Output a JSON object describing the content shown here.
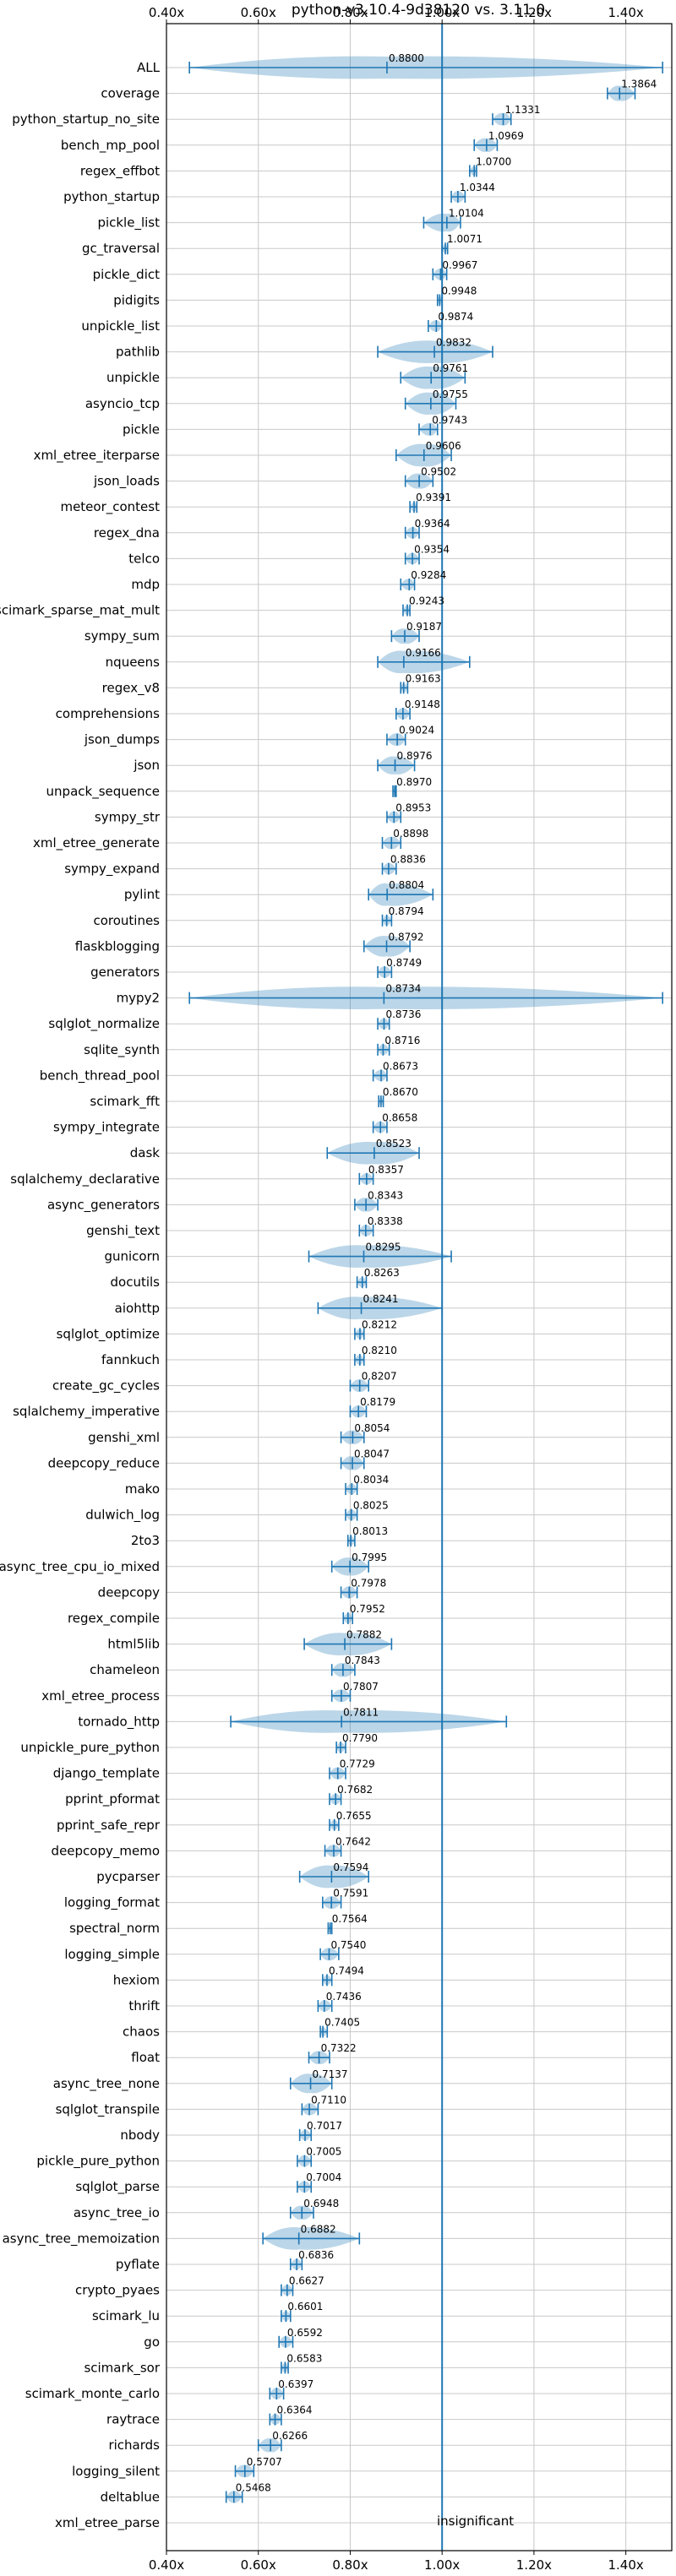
{
  "chart_data": {
    "type": "violin",
    "orientation": "horizontal",
    "title": "python-v3.10.4-9d38120 vs. 3.11.0",
    "xlim": [
      0.4,
      1.5
    ],
    "xticks": [
      0.4,
      0.6,
      0.8,
      1.0,
      1.2,
      1.4
    ],
    "xtick_labels": [
      "0.40x",
      "0.60x",
      "0.80x",
      "1.00x",
      "1.20x",
      "1.40x"
    ],
    "reference_line": 1.0,
    "grid": true,
    "colors": {
      "violin": "#1f77b4",
      "grid": "#c8c8c8"
    },
    "annotation": "insignificant",
    "benchmarks": [
      {
        "name": "ALL",
        "value": 0.88,
        "label": "0.8800",
        "min": 0.45,
        "max": 1.48
      },
      {
        "name": "coverage",
        "value": 1.3864,
        "label": "1.3864",
        "min": 1.36,
        "max": 1.42
      },
      {
        "name": "python_startup_no_site",
        "value": 1.1331,
        "label": "1.1331",
        "min": 1.11,
        "max": 1.15
      },
      {
        "name": "bench_mp_pool",
        "value": 1.0969,
        "label": "1.0969",
        "min": 1.07,
        "max": 1.12
      },
      {
        "name": "regex_effbot",
        "value": 1.07,
        "label": "1.0700",
        "min": 1.06,
        "max": 1.075
      },
      {
        "name": "python_startup",
        "value": 1.0344,
        "label": "1.0344",
        "min": 1.02,
        "max": 1.05
      },
      {
        "name": "pickle_list",
        "value": 1.0104,
        "label": "1.0104",
        "min": 0.96,
        "max": 1.04
      },
      {
        "name": "gc_traversal",
        "value": 1.0071,
        "label": "1.0071",
        "min": 1.0,
        "max": 1.012
      },
      {
        "name": "pickle_dict",
        "value": 0.9967,
        "label": "0.9967",
        "min": 0.98,
        "max": 1.01
      },
      {
        "name": "pidigits",
        "value": 0.9948,
        "label": "0.9948",
        "min": 0.99,
        "max": 1.0
      },
      {
        "name": "unpickle_list",
        "value": 0.9874,
        "label": "0.9874",
        "min": 0.97,
        "max": 1.0
      },
      {
        "name": "pathlib",
        "value": 0.9832,
        "label": "0.9832",
        "min": 0.86,
        "max": 1.11
      },
      {
        "name": "unpickle",
        "value": 0.9761,
        "label": "0.9761",
        "min": 0.91,
        "max": 1.05
      },
      {
        "name": "asyncio_tcp",
        "value": 0.9755,
        "label": "0.9755",
        "min": 0.92,
        "max": 1.03
      },
      {
        "name": "pickle",
        "value": 0.9743,
        "label": "0.9743",
        "min": 0.95,
        "max": 0.99
      },
      {
        "name": "xml_etree_iterparse",
        "value": 0.9606,
        "label": "0.9606",
        "min": 0.9,
        "max": 1.02
      },
      {
        "name": "json_loads",
        "value": 0.9502,
        "label": "0.9502",
        "min": 0.92,
        "max": 0.98
      },
      {
        "name": "meteor_contest",
        "value": 0.9391,
        "label": "0.9391",
        "min": 0.93,
        "max": 0.945
      },
      {
        "name": "regex_dna",
        "value": 0.9364,
        "label": "0.9364",
        "min": 0.92,
        "max": 0.95
      },
      {
        "name": "telco",
        "value": 0.9354,
        "label": "0.9354",
        "min": 0.92,
        "max": 0.95
      },
      {
        "name": "mdp",
        "value": 0.9284,
        "label": "0.9284",
        "min": 0.91,
        "max": 0.94
      },
      {
        "name": "scimark_sparse_mat_mult",
        "value": 0.9243,
        "label": "0.9243",
        "min": 0.915,
        "max": 0.93
      },
      {
        "name": "sympy_sum",
        "value": 0.9187,
        "label": "0.9187",
        "min": 0.89,
        "max": 0.95
      },
      {
        "name": "nqueens",
        "value": 0.9166,
        "label": "0.9166",
        "min": 0.86,
        "max": 1.06
      },
      {
        "name": "regex_v8",
        "value": 0.9163,
        "label": "0.9163",
        "min": 0.91,
        "max": 0.925
      },
      {
        "name": "comprehensions",
        "value": 0.9148,
        "label": "0.9148",
        "min": 0.9,
        "max": 0.93
      },
      {
        "name": "json_dumps",
        "value": 0.9024,
        "label": "0.9024",
        "min": 0.88,
        "max": 0.92
      },
      {
        "name": "json",
        "value": 0.8976,
        "label": "0.8976",
        "min": 0.86,
        "max": 0.94
      },
      {
        "name": "unpack_sequence",
        "value": 0.897,
        "label": "0.8970",
        "min": 0.893,
        "max": 0.9
      },
      {
        "name": "sympy_str",
        "value": 0.8953,
        "label": "0.8953",
        "min": 0.88,
        "max": 0.91
      },
      {
        "name": "xml_etree_generate",
        "value": 0.8898,
        "label": "0.8898",
        "min": 0.87,
        "max": 0.91
      },
      {
        "name": "sympy_expand",
        "value": 0.8836,
        "label": "0.8836",
        "min": 0.87,
        "max": 0.9
      },
      {
        "name": "pylint",
        "value": 0.8804,
        "label": "0.8804",
        "min": 0.84,
        "max": 0.98
      },
      {
        "name": "coroutines",
        "value": 0.8794,
        "label": "0.8794",
        "min": 0.87,
        "max": 0.89
      },
      {
        "name": "flaskblogging",
        "value": 0.8792,
        "label": "0.8792",
        "min": 0.83,
        "max": 0.93
      },
      {
        "name": "generators",
        "value": 0.8749,
        "label": "0.8749",
        "min": 0.86,
        "max": 0.89
      },
      {
        "name": "mypy2",
        "value": 0.8734,
        "label": "0.8734",
        "min": 0.45,
        "max": 1.48
      },
      {
        "name": "sqlglot_normalize",
        "value": 0.8736,
        "label": "0.8736",
        "min": 0.86,
        "max": 0.885
      },
      {
        "name": "sqlite_synth",
        "value": 0.8716,
        "label": "0.8716",
        "min": 0.86,
        "max": 0.885
      },
      {
        "name": "bench_thread_pool",
        "value": 0.8673,
        "label": "0.8673",
        "min": 0.85,
        "max": 0.88
      },
      {
        "name": "scimark_fft",
        "value": 0.867,
        "label": "0.8670",
        "min": 0.862,
        "max": 0.872
      },
      {
        "name": "sympy_integrate",
        "value": 0.8658,
        "label": "0.8658",
        "min": 0.85,
        "max": 0.88
      },
      {
        "name": "dask",
        "value": 0.8523,
        "label": "0.8523",
        "min": 0.75,
        "max": 0.95
      },
      {
        "name": "sqlalchemy_declarative",
        "value": 0.8357,
        "label": "0.8357",
        "min": 0.82,
        "max": 0.85
      },
      {
        "name": "async_generators",
        "value": 0.8343,
        "label": "0.8343",
        "min": 0.81,
        "max": 0.86
      },
      {
        "name": "genshi_text",
        "value": 0.8338,
        "label": "0.8338",
        "min": 0.82,
        "max": 0.85
      },
      {
        "name": "gunicorn",
        "value": 0.8295,
        "label": "0.8295",
        "min": 0.71,
        "max": 1.02
      },
      {
        "name": "docutils",
        "value": 0.8263,
        "label": "0.8263",
        "min": 0.815,
        "max": 0.835
      },
      {
        "name": "aiohttp",
        "value": 0.8241,
        "label": "0.8241",
        "min": 0.73,
        "max": 1.0
      },
      {
        "name": "sqlglot_optimize",
        "value": 0.8212,
        "label": "0.8212",
        "min": 0.81,
        "max": 0.83
      },
      {
        "name": "fannkuch",
        "value": 0.821,
        "label": "0.8210",
        "min": 0.81,
        "max": 0.83
      },
      {
        "name": "create_gc_cycles",
        "value": 0.8207,
        "label": "0.8207",
        "min": 0.8,
        "max": 0.84
      },
      {
        "name": "sqlalchemy_imperative",
        "value": 0.8179,
        "label": "0.8179",
        "min": 0.8,
        "max": 0.835
      },
      {
        "name": "genshi_xml",
        "value": 0.8054,
        "label": "0.8054",
        "min": 0.78,
        "max": 0.83
      },
      {
        "name": "deepcopy_reduce",
        "value": 0.8047,
        "label": "0.8047",
        "min": 0.78,
        "max": 0.83
      },
      {
        "name": "mako",
        "value": 0.8034,
        "label": "0.8034",
        "min": 0.79,
        "max": 0.815
      },
      {
        "name": "dulwich_log",
        "value": 0.8025,
        "label": "0.8025",
        "min": 0.79,
        "max": 0.815
      },
      {
        "name": "2to3",
        "value": 0.8013,
        "label": "0.8013",
        "min": 0.795,
        "max": 0.81
      },
      {
        "name": "async_tree_cpu_io_mixed",
        "value": 0.7995,
        "label": "0.7995",
        "min": 0.76,
        "max": 0.84
      },
      {
        "name": "deepcopy",
        "value": 0.7978,
        "label": "0.7978",
        "min": 0.78,
        "max": 0.815
      },
      {
        "name": "regex_compile",
        "value": 0.7952,
        "label": "0.7952",
        "min": 0.785,
        "max": 0.805
      },
      {
        "name": "html5lib",
        "value": 0.7882,
        "label": "0.7882",
        "min": 0.7,
        "max": 0.89
      },
      {
        "name": "chameleon",
        "value": 0.7843,
        "label": "0.7843",
        "min": 0.76,
        "max": 0.81
      },
      {
        "name": "xml_etree_process",
        "value": 0.7807,
        "label": "0.7807",
        "min": 0.76,
        "max": 0.8
      },
      {
        "name": "tornado_http",
        "value": 0.7811,
        "label": "0.7811",
        "min": 0.54,
        "max": 1.14
      },
      {
        "name": "unpickle_pure_python",
        "value": 0.779,
        "label": "0.7790",
        "min": 0.77,
        "max": 0.79
      },
      {
        "name": "django_template",
        "value": 0.7729,
        "label": "0.7729",
        "min": 0.755,
        "max": 0.79
      },
      {
        "name": "pprint_pformat",
        "value": 0.7682,
        "label": "0.7682",
        "min": 0.755,
        "max": 0.78
      },
      {
        "name": "pprint_safe_repr",
        "value": 0.7655,
        "label": "0.7655",
        "min": 0.755,
        "max": 0.775
      },
      {
        "name": "deepcopy_memo",
        "value": 0.7642,
        "label": "0.7642",
        "min": 0.745,
        "max": 0.78
      },
      {
        "name": "pycparser",
        "value": 0.7594,
        "label": "0.7594",
        "min": 0.69,
        "max": 0.84
      },
      {
        "name": "logging_format",
        "value": 0.7591,
        "label": "0.7591",
        "min": 0.74,
        "max": 0.78
      },
      {
        "name": "spectral_norm",
        "value": 0.7564,
        "label": "0.7564",
        "min": 0.752,
        "max": 0.76
      },
      {
        "name": "logging_simple",
        "value": 0.754,
        "label": "0.7540",
        "min": 0.735,
        "max": 0.775
      },
      {
        "name": "hexiom",
        "value": 0.7494,
        "label": "0.7494",
        "min": 0.74,
        "max": 0.76
      },
      {
        "name": "thrift",
        "value": 0.7436,
        "label": "0.7436",
        "min": 0.73,
        "max": 0.76
      },
      {
        "name": "chaos",
        "value": 0.7405,
        "label": "0.7405",
        "min": 0.735,
        "max": 0.75
      },
      {
        "name": "float",
        "value": 0.7322,
        "label": "0.7322",
        "min": 0.71,
        "max": 0.755
      },
      {
        "name": "async_tree_none",
        "value": 0.7137,
        "label": "0.7137",
        "min": 0.67,
        "max": 0.76
      },
      {
        "name": "sqlglot_transpile",
        "value": 0.711,
        "label": "0.7110",
        "min": 0.695,
        "max": 0.73
      },
      {
        "name": "nbody",
        "value": 0.7017,
        "label": "0.7017",
        "min": 0.69,
        "max": 0.715
      },
      {
        "name": "pickle_pure_python",
        "value": 0.7005,
        "label": "0.7005",
        "min": 0.685,
        "max": 0.715
      },
      {
        "name": "sqlglot_parse",
        "value": 0.7004,
        "label": "0.7004",
        "min": 0.685,
        "max": 0.715
      },
      {
        "name": "async_tree_io",
        "value": 0.6948,
        "label": "0.6948",
        "min": 0.67,
        "max": 0.72
      },
      {
        "name": "async_tree_memoization",
        "value": 0.6882,
        "label": "0.6882",
        "min": 0.61,
        "max": 0.82
      },
      {
        "name": "pyflate",
        "value": 0.6836,
        "label": "0.6836",
        "min": 0.67,
        "max": 0.695
      },
      {
        "name": "crypto_pyaes",
        "value": 0.6627,
        "label": "0.6627",
        "min": 0.65,
        "max": 0.675
      },
      {
        "name": "scimark_lu",
        "value": 0.6601,
        "label": "0.6601",
        "min": 0.65,
        "max": 0.67
      },
      {
        "name": "go",
        "value": 0.6592,
        "label": "0.6592",
        "min": 0.645,
        "max": 0.675
      },
      {
        "name": "scimark_sor",
        "value": 0.6583,
        "label": "0.6583",
        "min": 0.65,
        "max": 0.665
      },
      {
        "name": "scimark_monte_carlo",
        "value": 0.6397,
        "label": "0.6397",
        "min": 0.625,
        "max": 0.655
      },
      {
        "name": "raytrace",
        "value": 0.6364,
        "label": "0.6364",
        "min": 0.625,
        "max": 0.65
      },
      {
        "name": "richards",
        "value": 0.6266,
        "label": "0.6266",
        "min": 0.6,
        "max": 0.65
      },
      {
        "name": "logging_silent",
        "value": 0.5707,
        "label": "0.5707",
        "min": 0.55,
        "max": 0.59
      },
      {
        "name": "deltablue",
        "value": 0.5468,
        "label": "0.5468",
        "min": 0.53,
        "max": 0.565
      },
      {
        "name": "xml_etree_parse",
        "value": null,
        "label": "",
        "min": null,
        "max": null
      }
    ]
  }
}
